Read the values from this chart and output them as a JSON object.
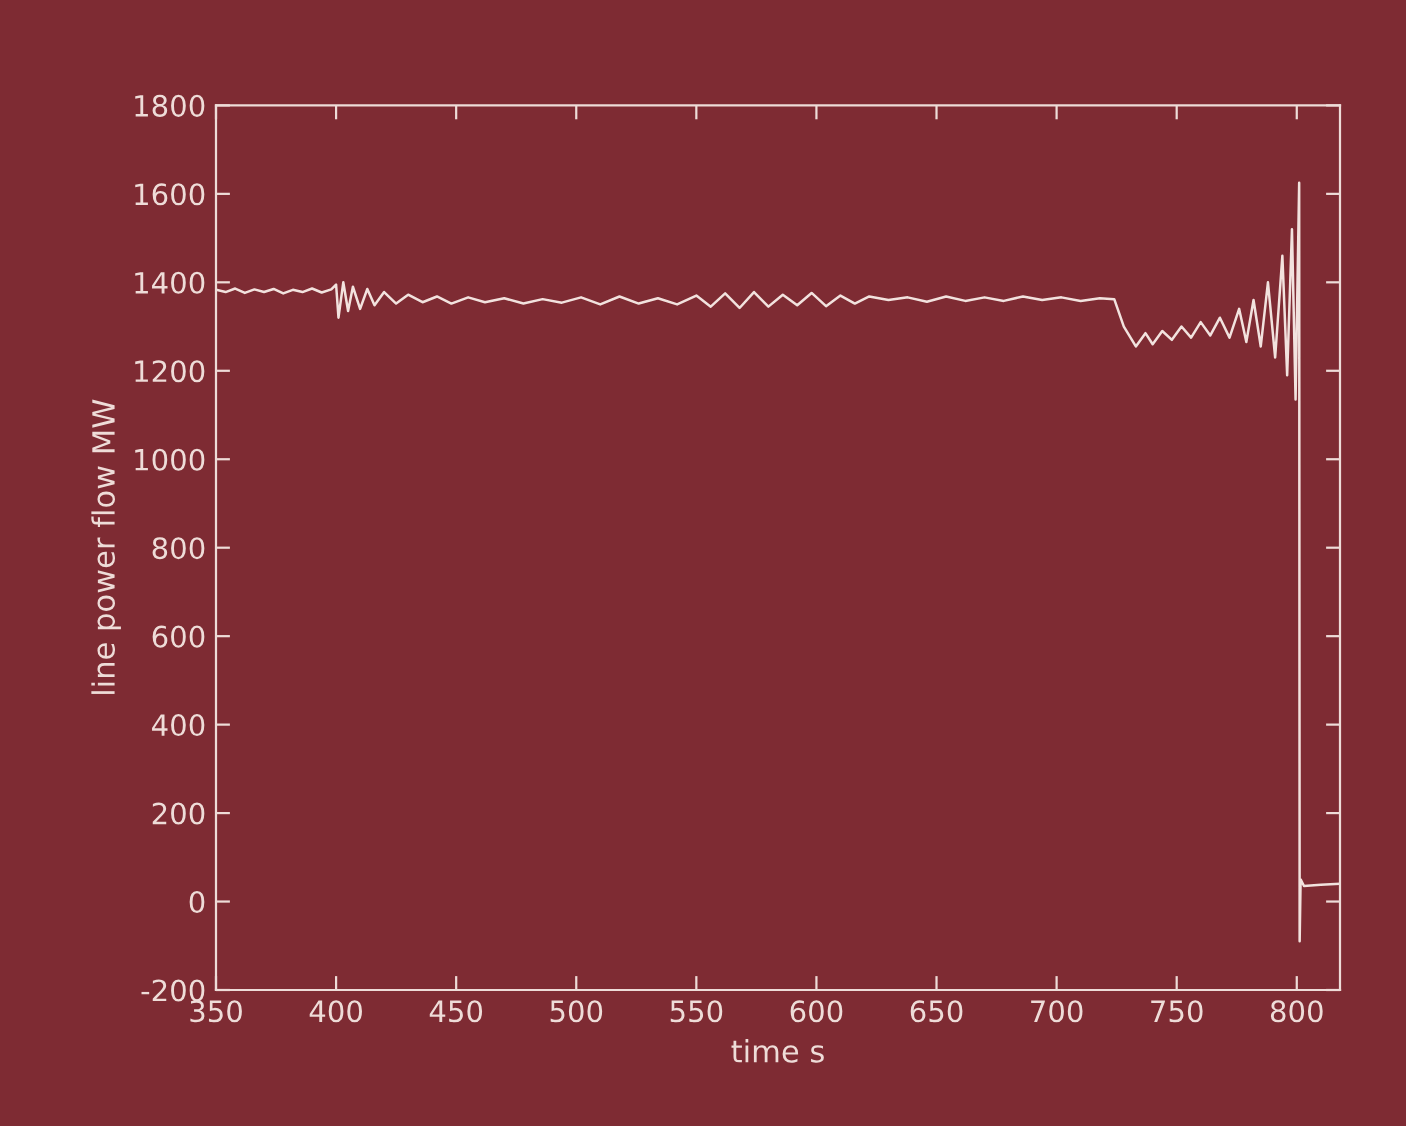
{
  "chart_data": {
    "type": "line",
    "xlabel": "time s",
    "ylabel": "line power flow MW",
    "xlim": [
      350,
      818
    ],
    "ylim": [
      -200,
      1800
    ],
    "xticks": [
      350,
      400,
      450,
      500,
      550,
      600,
      650,
      700,
      750,
      800
    ],
    "yticks": [
      -200,
      0,
      200,
      400,
      600,
      800,
      1000,
      1200,
      1400,
      1600,
      1800
    ],
    "grid": false,
    "legend": false,
    "marker": "none",
    "line_style": "solid",
    "series": [
      {
        "color": "#f2e2de",
        "x": [
          350,
          354,
          358,
          362,
          366,
          370,
          374,
          378,
          382,
          386,
          390,
          394,
          398,
          400,
          401,
          403,
          405,
          407,
          410,
          413,
          416,
          420,
          425,
          430,
          436,
          442,
          448,
          455,
          462,
          470,
          478,
          486,
          494,
          502,
          510,
          518,
          526,
          534,
          542,
          550,
          556,
          562,
          568,
          574,
          580,
          586,
          592,
          598,
          604,
          610,
          616,
          622,
          630,
          638,
          646,
          654,
          662,
          670,
          678,
          686,
          694,
          702,
          710,
          718,
          724,
          728,
          733,
          737,
          740,
          744,
          748,
          752,
          756,
          760,
          764,
          768,
          772,
          776,
          779,
          782,
          785,
          788,
          791,
          794,
          796,
          798,
          799.5,
          801,
          801.2,
          801.6,
          803,
          810,
          818
        ],
        "values": [
          1383,
          1378,
          1386,
          1376,
          1384,
          1378,
          1385,
          1375,
          1383,
          1378,
          1386,
          1377,
          1384,
          1395,
          1320,
          1400,
          1335,
          1390,
          1340,
          1385,
          1348,
          1378,
          1352,
          1372,
          1355,
          1368,
          1352,
          1366,
          1355,
          1364,
          1352,
          1362,
          1354,
          1366,
          1350,
          1368,
          1352,
          1364,
          1350,
          1370,
          1345,
          1375,
          1342,
          1378,
          1345,
          1372,
          1348,
          1376,
          1346,
          1370,
          1352,
          1368,
          1360,
          1366,
          1356,
          1368,
          1358,
          1366,
          1358,
          1368,
          1360,
          1366,
          1358,
          1364,
          1362,
          1300,
          1255,
          1285,
          1260,
          1290,
          1270,
          1300,
          1275,
          1310,
          1280,
          1320,
          1275,
          1340,
          1265,
          1360,
          1255,
          1400,
          1230,
          1460,
          1190,
          1520,
          1135,
          1625,
          -90,
          50,
          35,
          38,
          40
        ]
      }
    ]
  }
}
